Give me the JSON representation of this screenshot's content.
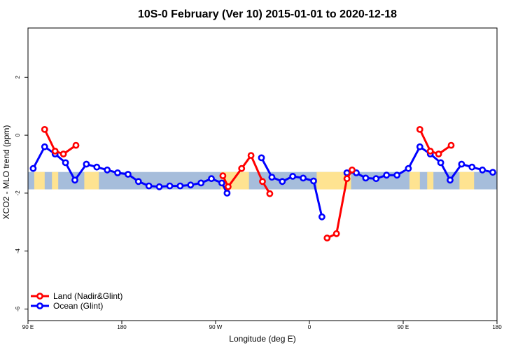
{
  "chart_data": {
    "type": "line",
    "title": "10S-0 February (Ver 10)   2015-01-01 to 2020-12-18",
    "xlabel": "Longitude (deg E)",
    "ylabel": "XCO2 - MLO trend (ppm)",
    "x_ticks": [
      {
        "value": 90,
        "label": "90 E"
      },
      {
        "value": 180,
        "label": "180"
      },
      {
        "value": 270,
        "label": "90 W"
      },
      {
        "value": 360,
        "label": "0"
      },
      {
        "value": 450,
        "label": "90 E"
      },
      {
        "value": 540,
        "label": "180"
      }
    ],
    "y_ticks": [
      {
        "value": 2,
        "label": "2"
      },
      {
        "value": 0,
        "label": "0"
      },
      {
        "value": -2,
        "label": "-2"
      },
      {
        "value": -4,
        "label": "-4"
      },
      {
        "value": -6,
        "label": "-6"
      }
    ],
    "xlim": [
      90,
      540
    ],
    "ylim": [
      -6.4,
      3.7
    ],
    "band": {
      "y_range": [
        -1.87,
        -1.27
      ],
      "ocean_color": "#A6BDDB",
      "land_color": "#FEE391"
    },
    "land_segments": [
      [
        96,
        106
      ],
      [
        113,
        119
      ],
      [
        144,
        158
      ],
      [
        275,
        302
      ],
      [
        367,
        400
      ],
      [
        456,
        466
      ],
      [
        473,
        479
      ],
      [
        504,
        518
      ]
    ],
    "legend_position": "bottom-left",
    "series": [
      {
        "name": "Land (Nadir&Glint)",
        "color": "#FF0000",
        "segments": [
          [
            [
              106,
              0.2
            ],
            [
              116,
              -0.55
            ],
            [
              124,
              -0.65
            ],
            [
              136,
              -0.35
            ]
          ],
          [
            [
              277,
              -1.4
            ],
            [
              282,
              -1.78
            ],
            [
              295,
              -1.15
            ],
            [
              304,
              -0.7
            ],
            [
              315,
              -1.6
            ],
            [
              322,
              -2.02
            ]
          ],
          [
            [
              377,
              -3.55
            ],
            [
              386,
              -3.4
            ],
            [
              396,
              -1.5
            ],
            [
              401,
              -1.2
            ]
          ],
          [
            [
              466,
              0.2
            ],
            [
              476,
              -0.55
            ],
            [
              484,
              -0.65
            ],
            [
              496,
              -0.35
            ]
          ]
        ]
      },
      {
        "name": "Ocean (Glint)",
        "color": "#0000FF",
        "segments": [
          [
            [
              95,
              -1.15
            ],
            [
              106,
              -0.4
            ],
            [
              116,
              -0.65
            ],
            [
              126,
              -0.95
            ],
            [
              135,
              -1.55
            ],
            [
              146,
              -1.0
            ],
            [
              156,
              -1.1
            ],
            [
              166,
              -1.2
            ],
            [
              176,
              -1.3
            ],
            [
              186,
              -1.35
            ],
            [
              196,
              -1.6
            ],
            [
              206,
              -1.75
            ],
            [
              216,
              -1.78
            ],
            [
              226,
              -1.75
            ],
            [
              236,
              -1.75
            ],
            [
              246,
              -1.72
            ],
            [
              256,
              -1.65
            ],
            [
              266,
              -1.5
            ],
            [
              276,
              -1.65
            ],
            [
              281,
              -2.0
            ]
          ],
          [
            [
              314,
              -0.78
            ],
            [
              324,
              -1.45
            ],
            [
              334,
              -1.6
            ],
            [
              344,
              -1.42
            ],
            [
              354,
              -1.48
            ],
            [
              364,
              -1.58
            ],
            [
              372,
              -2.82
            ]
          ],
          [
            [
              396,
              -1.3
            ],
            [
              405,
              -1.3
            ],
            [
              414,
              -1.48
            ],
            [
              424,
              -1.5
            ],
            [
              434,
              -1.38
            ],
            [
              444,
              -1.38
            ],
            [
              455,
              -1.15
            ],
            [
              466,
              -0.4
            ],
            [
              476,
              -0.65
            ],
            [
              486,
              -0.95
            ],
            [
              495,
              -1.55
            ],
            [
              506,
              -1.0
            ],
            [
              516,
              -1.1
            ],
            [
              526,
              -1.2
            ],
            [
              536,
              -1.28
            ]
          ]
        ]
      }
    ]
  }
}
